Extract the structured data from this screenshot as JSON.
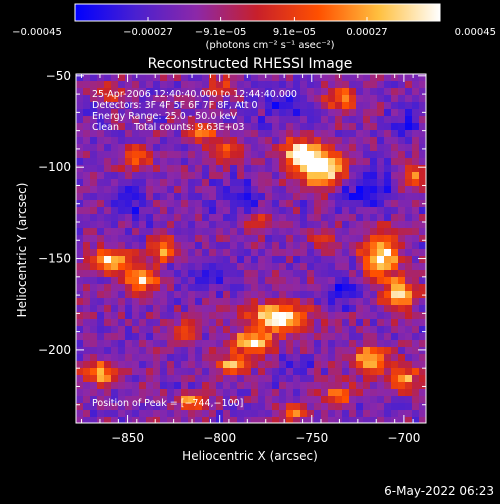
{
  "colors": {
    "background": "#000000",
    "foreground": "#ffffff"
  },
  "chart_data": {
    "type": "heatmap",
    "title": "Reconstructed RHESSI Image",
    "xlabel": "Heliocentric X (arcsec)",
    "ylabel": "Heliocentric Y (arcsec)",
    "xlim": [
      -878,
      -688
    ],
    "ylim": [
      -240,
      -49
    ],
    "xticks": [
      -850,
      -800,
      -750,
      -700
    ],
    "xtick_labels": [
      "−850",
      "−800",
      "−750",
      "−700"
    ],
    "yticks": [
      -50,
      -100,
      -150,
      -200
    ],
    "ytick_labels": [
      "−50",
      "−100",
      "−150",
      "−200"
    ],
    "grid": false,
    "colorbar": {
      "position": "top",
      "range": [
        -0.00045,
        0.00045
      ],
      "tick_values": [
        -0.00045,
        -0.00027,
        -9.1e-05,
        9.1e-05,
        0.00027,
        0.00045
      ],
      "tick_labels": [
        "−0.00045",
        "−0.00027",
        "−9.1e−05",
        "9.1e−05",
        "0.00027",
        "0.00045"
      ],
      "unit_label": "(photons cm⁻² s⁻¹ asec⁻²)",
      "colormap": [
        "#0000ff",
        "#4a20d0",
        "#8c28a8",
        "#c8202a",
        "#ff5000",
        "#ffc040",
        "#ffffff"
      ]
    },
    "annotations": [
      "25-Apr-2006 12:40:40.000 to 12:44:40.000",
      "Detectors: 3F 4F 5F 6F 7F 8F, Att 0",
      "Energy Range: 25.0 - 50.0 keV",
      "Clean     Total counts: 9.63E+03",
      "Position of Peak = [−744,−100]"
    ],
    "peak": {
      "x": -744,
      "y": -100
    },
    "hotspots": [
      [
        -744,
        -100,
        14,
        10,
        1.0
      ],
      [
        -756,
        -92,
        9,
        7,
        0.85
      ],
      [
        -768,
        -182,
        16,
        8,
        0.95
      ],
      [
        -782,
        -196,
        12,
        6,
        0.85
      ],
      [
        -792,
        -208,
        9,
        5,
        0.7
      ],
      [
        -858,
        -152,
        11,
        7,
        0.8
      ],
      [
        -842,
        -162,
        9,
        7,
        0.75
      ],
      [
        -830,
        -145,
        8,
        6,
        0.65
      ],
      [
        -810,
        -80,
        8,
        6,
        0.6
      ],
      [
        -796,
        -92,
        7,
        6,
        0.55
      ],
      [
        -845,
        -95,
        8,
        7,
        0.55
      ],
      [
        -712,
        -148,
        10,
        12,
        0.85
      ],
      [
        -702,
        -170,
        9,
        9,
        0.75
      ],
      [
        -718,
        -205,
        10,
        8,
        0.7
      ],
      [
        -700,
        -215,
        8,
        8,
        0.65
      ],
      [
        -864,
        -213,
        10,
        6,
        0.7
      ],
      [
        -815,
        -228,
        9,
        5,
        0.6
      ],
      [
        -735,
        -62,
        9,
        6,
        0.55
      ],
      [
        -800,
        -56,
        8,
        5,
        0.45
      ],
      [
        -860,
        -60,
        7,
        5,
        0.45
      ],
      [
        -780,
        -130,
        7,
        6,
        0.45
      ],
      [
        -745,
        -140,
        6,
        6,
        0.4
      ],
      [
        -735,
        -225,
        8,
        6,
        0.55
      ],
      [
        -695,
        -105,
        6,
        7,
        0.5
      ],
      [
        -820,
        -190,
        7,
        6,
        0.45
      ],
      [
        -760,
        -235,
        8,
        5,
        0.5
      ]
    ],
    "coldspots": [
      [
        -722,
        -110,
        14,
        12,
        0.7
      ],
      [
        -764,
        -66,
        14,
        10,
        0.6
      ],
      [
        -790,
        -118,
        12,
        10,
        0.55
      ],
      [
        -850,
        -120,
        10,
        10,
        0.5
      ],
      [
        -735,
        -168,
        10,
        9,
        0.55
      ],
      [
        -808,
        -160,
        9,
        8,
        0.5
      ],
      [
        -760,
        -210,
        8,
        7,
        0.45
      ],
      [
        -700,
        -75,
        8,
        8,
        0.5
      ]
    ]
  },
  "footer": {
    "date_stamp": "6-May-2022 06:23"
  }
}
